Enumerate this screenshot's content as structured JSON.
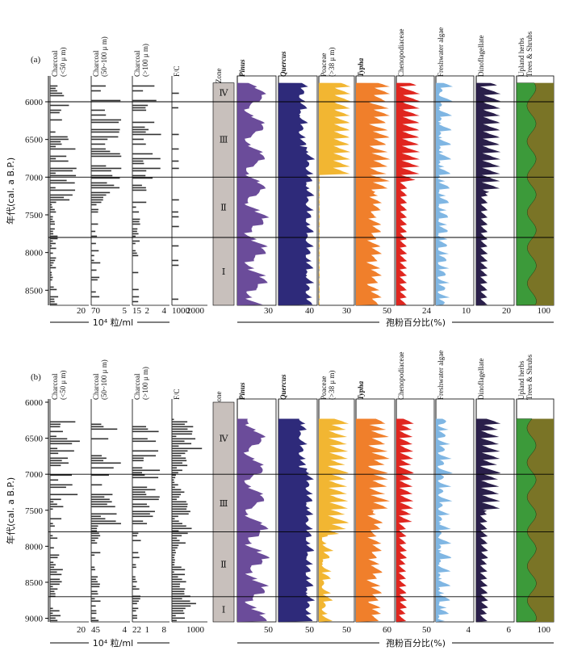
{
  "chart_data": {
    "type": "pollen-diagram",
    "units_left": "10⁴ 粒/ml",
    "units_right": "孢粉百分比(%)",
    "ylabel": "年代(cal. a B.P.)",
    "zone_header": "Zone",
    "colors": {
      "pinus": "#6b4c9a",
      "quercus": "#2e2a7a",
      "poaceae": "#f2b632",
      "typha": "#f07f2b",
      "chenopodiaceae": "#e0261f",
      "freshwater": "#7fb6e3",
      "dinoflagellate": "#2a1f4a",
      "upland": "#3c9a3a",
      "trees": "#7a7426",
      "charcoal": "#333333",
      "zone": "#c8c0bc"
    },
    "panels": [
      {
        "label": "(a)",
        "ylim": [
          5700,
          8700
        ],
        "yticks": [
          6000,
          6500,
          7000,
          7500,
          8000,
          8500
        ],
        "boundaries": [
          6000,
          7000,
          7800
        ],
        "zones": [
          {
            "name": "Ⅳ",
            "from": 5750,
            "to": 6000
          },
          {
            "name": "Ⅲ",
            "from": 6000,
            "to": 7000
          },
          {
            "name": "Ⅱ",
            "from": 7000,
            "to": 7800
          },
          {
            "name": "Ⅰ",
            "from": 7800,
            "to": 8700
          }
        ],
        "columns": [
          {
            "key": "charcoal1",
            "label": [
              "Charcoal",
              "(<50 μ m)"
            ],
            "kind": "bars",
            "max": 30,
            "ticks": [
              "20"
            ]
          },
          {
            "key": "charcoal2",
            "label": [
              "Charcoal",
              "(50~100 μ m)"
            ],
            "kind": "bars",
            "max": 8,
            "ticks": [
              "70",
              "5"
            ]
          },
          {
            "key": "charcoal3",
            "label": [
              "Charcoal",
              "(>100 μ m)"
            ],
            "kind": "bars",
            "max": 5,
            "ticks": [
              "15",
              "2",
              "4"
            ]
          },
          {
            "key": "fc",
            "label": [
              "F/C"
            ],
            "kind": "bars",
            "max": 2000,
            "ticks": [
              "1000",
              "2000"
            ]
          },
          {
            "key": "zone",
            "label": [
              "Zone"
            ],
            "kind": "zone"
          },
          {
            "key": "pinus",
            "label": [
              "Pinus"
            ],
            "italic": true,
            "kind": "area",
            "max": 40,
            "ticks": [
              "30"
            ]
          },
          {
            "key": "quercus",
            "label": [
              "Quercus"
            ],
            "italic": true,
            "kind": "area",
            "max": 45,
            "ticks": [
              "40"
            ]
          },
          {
            "key": "poaceae",
            "label": [
              "Poaceae",
              "(>38 μ m)"
            ],
            "kind": "area",
            "max": 35,
            "ticks": [
              "30"
            ]
          },
          {
            "key": "typha",
            "label": [
              "Typha"
            ],
            "italic": true,
            "kind": "area",
            "max": 55,
            "ticks": [
              "50"
            ]
          },
          {
            "key": "chenopodiaceae",
            "label": [
              "Chenopodiaceae"
            ],
            "kind": "area",
            "max": 30,
            "ticks": [
              "24"
            ]
          },
          {
            "key": "freshwater",
            "label": [
              "Freshwater algae"
            ],
            "kind": "area",
            "max": 12,
            "ticks": [
              "10"
            ]
          },
          {
            "key": "dinoflagellate",
            "label": [
              "Dinoflagellate"
            ],
            "kind": "area",
            "max": 25,
            "ticks": [
              "20"
            ]
          },
          {
            "key": "upland",
            "label": [
              "Upland herbs",
              "Trees & Shrubs"
            ],
            "kind": "ratio",
            "max": 100,
            "ticks": [
              "100"
            ]
          }
        ]
      },
      {
        "label": "(b)",
        "ylim": [
          6000,
          9050
        ],
        "yticks": [
          6000,
          6500,
          7000,
          7500,
          8000,
          8500,
          9000
        ],
        "boundaries": [
          7000,
          7800,
          8700
        ],
        "zones": [
          {
            "name": "Ⅳ",
            "from": 6000,
            "to": 7000
          },
          {
            "name": "Ⅲ",
            "from": 7000,
            "to": 7800
          },
          {
            "name": "Ⅱ",
            "from": 7800,
            "to": 8700
          },
          {
            "name": "Ⅰ",
            "from": 8700,
            "to": 9050
          }
        ],
        "columns": [
          {
            "key": "charcoal1",
            "label": [
              "Charcoal",
              "(<50 μ m)"
            ],
            "kind": "bars",
            "max": 30,
            "ticks": [
              "20"
            ]
          },
          {
            "key": "charcoal2",
            "label": [
              "Charcoal",
              "(50~100 μ m)"
            ],
            "kind": "bars",
            "max": 6,
            "ticks": [
              "45",
              "4"
            ]
          },
          {
            "key": "charcoal3",
            "label": [
              "Charcoal",
              "(>100 μ m)"
            ],
            "kind": "bars",
            "max": 8,
            "ticks": [
              "22",
              "1",
              "8"
            ]
          },
          {
            "key": "fc",
            "label": [
              "F/C"
            ],
            "kind": "bars",
            "max": 1200,
            "ticks": [
              "1000"
            ]
          },
          {
            "key": "zone",
            "label": [
              "Zone"
            ],
            "kind": "zone"
          },
          {
            "key": "pinus",
            "label": [
              "Pinus"
            ],
            "italic": true,
            "kind": "area",
            "max": 60,
            "ticks": [
              "50"
            ]
          },
          {
            "key": "quercus",
            "label": [
              "Quercus"
            ],
            "italic": true,
            "kind": "area",
            "max": 60,
            "ticks": [
              "50"
            ]
          },
          {
            "key": "poaceae",
            "label": [
              "Poaceae",
              "(>38 μ m)"
            ],
            "kind": "area",
            "max": 55,
            "ticks": [
              "50"
            ]
          },
          {
            "key": "typha",
            "label": [
              "Typha"
            ],
            "italic": true,
            "kind": "area",
            "max": 60,
            "ticks": [
              "60"
            ]
          },
          {
            "key": "chenopodiaceae",
            "label": [
              "Chenopodiaceae"
            ],
            "kind": "area",
            "max": 60,
            "ticks": [
              "50"
            ]
          },
          {
            "key": "freshwater",
            "label": [
              "Freshwater algae"
            ],
            "kind": "area",
            "max": 5,
            "ticks": [
              "4"
            ]
          },
          {
            "key": "dinoflagellate",
            "label": [
              "Dinoflagellate"
            ],
            "kind": "area",
            "max": 7,
            "ticks": [
              "6"
            ]
          },
          {
            "key": "upland",
            "label": [
              "Upland herbs",
              "Trees & Shrubs"
            ],
            "kind": "ratio",
            "max": 100,
            "ticks": [
              "100"
            ]
          }
        ]
      }
    ]
  }
}
